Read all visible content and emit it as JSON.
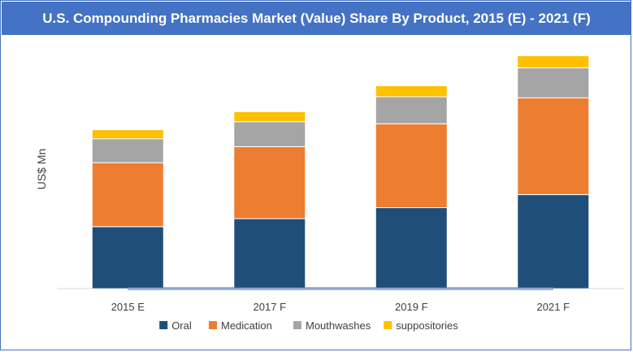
{
  "chart_data": {
    "type": "bar",
    "stacked": true,
    "title": "U.S. Compounding Pharmacies Market (Value) Share By Product, 2015 (E) - 2021 (F)",
    "xlabel": "",
    "ylabel": "US$ Mn",
    "categories": [
      "2015 E",
      "2017 F",
      "2019 F",
      "2021 F"
    ],
    "series": [
      {
        "name": "Oral",
        "color": "#1f4e79",
        "values": [
          62,
          70,
          81,
          94
        ]
      },
      {
        "name": "Medication",
        "color": "#ed7d31",
        "values": [
          64,
          72,
          84,
          97
        ]
      },
      {
        "name": "Mouthwashes",
        "color": "#a5a5a5",
        "values": [
          24,
          25,
          27,
          30
        ]
      },
      {
        "name": "suppositories",
        "color": "#ffc000",
        "values": [
          9,
          10,
          11,
          12
        ]
      }
    ],
    "ylim": [
      0,
      240
    ],
    "grid": false,
    "legend": "bottom",
    "axis_color": "#4472c4"
  }
}
